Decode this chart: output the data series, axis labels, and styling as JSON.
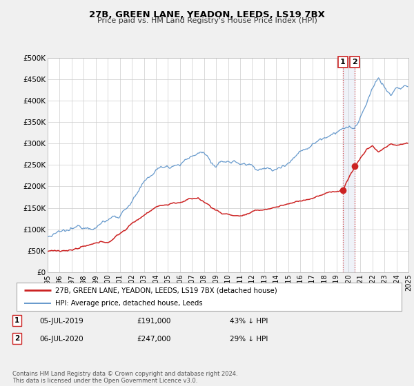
{
  "title": "27B, GREEN LANE, YEADON, LEEDS, LS19 7BX",
  "subtitle": "Price paid vs. HM Land Registry's House Price Index (HPI)",
  "xlim": [
    1995,
    2025
  ],
  "ylim": [
    0,
    500000
  ],
  "yticks": [
    0,
    50000,
    100000,
    150000,
    200000,
    250000,
    300000,
    350000,
    400000,
    450000,
    500000
  ],
  "ytick_labels": [
    "£0",
    "£50K",
    "£100K",
    "£150K",
    "£200K",
    "£250K",
    "£300K",
    "£350K",
    "£400K",
    "£450K",
    "£500K"
  ],
  "hpi_color": "#6699cc",
  "price_color": "#cc2222",
  "bg_color": "#f0f0f0",
  "plot_bg": "#ffffff",
  "grid_color": "#cccccc",
  "transaction1_x": 2019.52,
  "transaction1_y": 191000,
  "transaction2_x": 2020.52,
  "transaction2_y": 247000,
  "legend_label_price": "27B, GREEN LANE, YEADON, LEEDS, LS19 7BX (detached house)",
  "legend_label_hpi": "HPI: Average price, detached house, Leeds",
  "note1_date": "05-JUL-2019",
  "note1_price": "£191,000",
  "note1_pct": "43% ↓ HPI",
  "note2_date": "06-JUL-2020",
  "note2_price": "£247,000",
  "note2_pct": "29% ↓ HPI",
  "footer": "Contains HM Land Registry data © Crown copyright and database right 2024.\nThis data is licensed under the Open Government Licence v3.0."
}
